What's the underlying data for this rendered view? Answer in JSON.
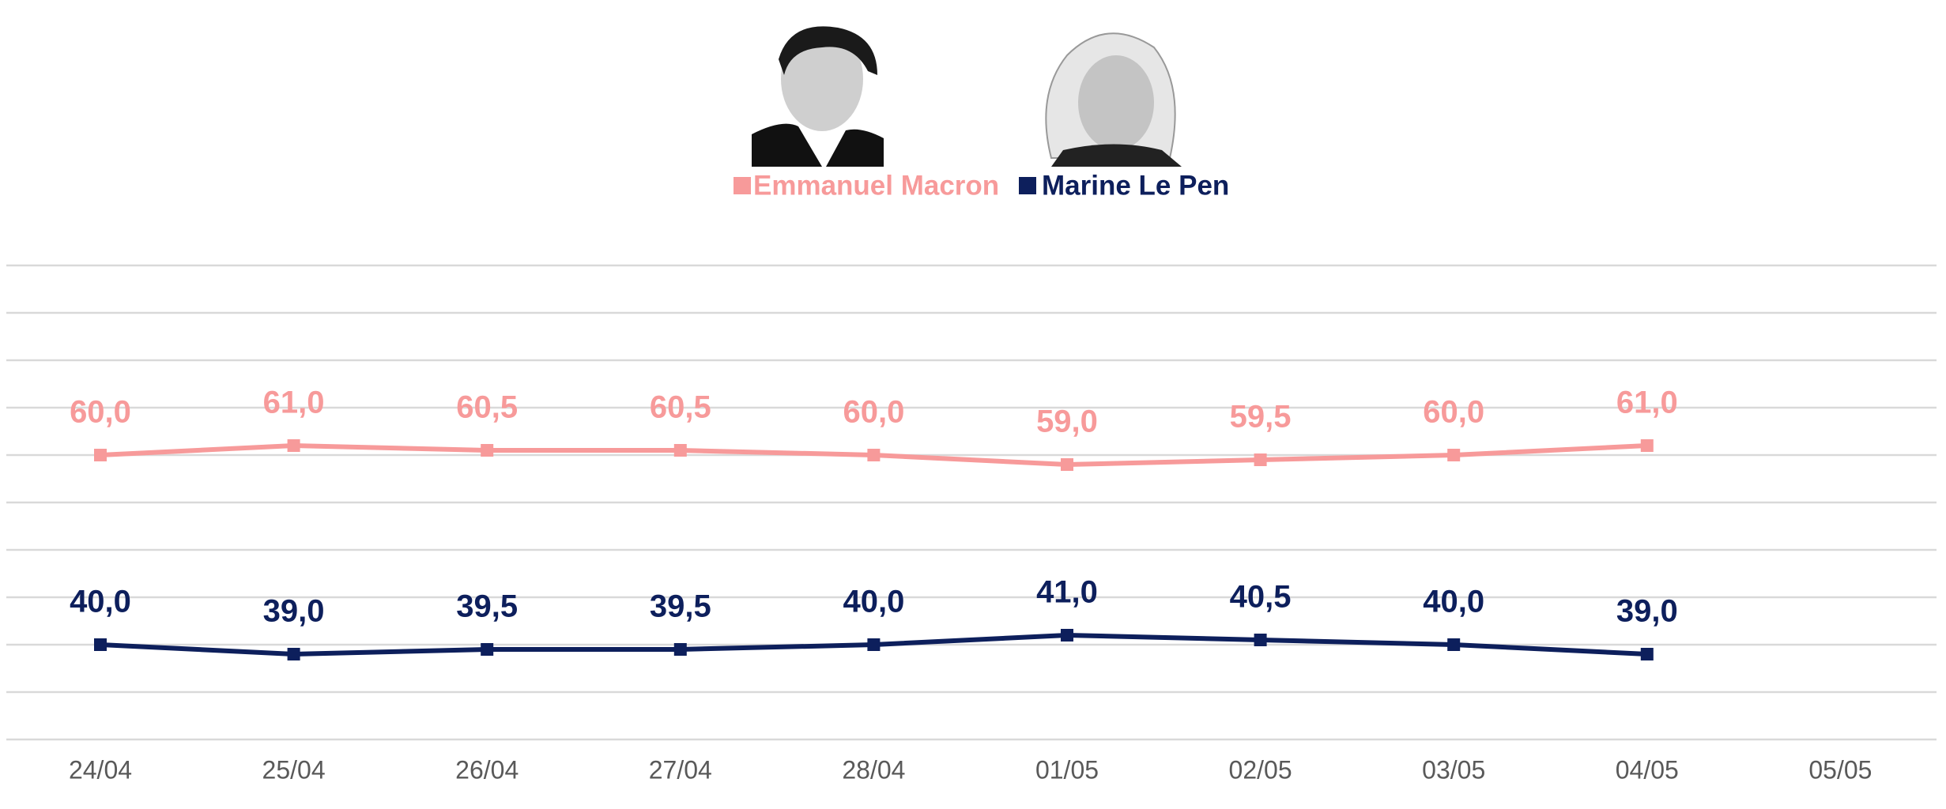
{
  "chart_data": {
    "type": "line",
    "categories": [
      "24/04",
      "25/04",
      "26/04",
      "27/04",
      "28/04",
      "01/05",
      "02/05",
      "03/05",
      "04/05",
      "05/05"
    ],
    "series": [
      {
        "name": "Emmanuel Macron",
        "color": "#f79a9a",
        "values": [
          60.0,
          61.0,
          60.5,
          60.5,
          60.0,
          59.0,
          59.5,
          60.0,
          61.0,
          null
        ],
        "value_labels": [
          "60,0",
          "61,0",
          "60,5",
          "60,5",
          "60,0",
          "59,0",
          "59,5",
          "60,0",
          "61,0",
          null
        ]
      },
      {
        "name": "Marine Le Pen",
        "color": "#0d1f5c",
        "values": [
          40.0,
          39.0,
          39.5,
          39.5,
          40.0,
          41.0,
          40.5,
          40.0,
          39.0,
          null
        ],
        "value_labels": [
          "40,0",
          "39,0",
          "39,5",
          "39,5",
          "40,0",
          "41,0",
          "40,5",
          "40,0",
          "39,0",
          null
        ]
      }
    ],
    "ylim": [
      30,
      80
    ],
    "yticks": [
      30,
      35,
      40,
      45,
      50,
      55,
      60,
      65,
      70,
      75,
      80
    ],
    "grid": true
  }
}
